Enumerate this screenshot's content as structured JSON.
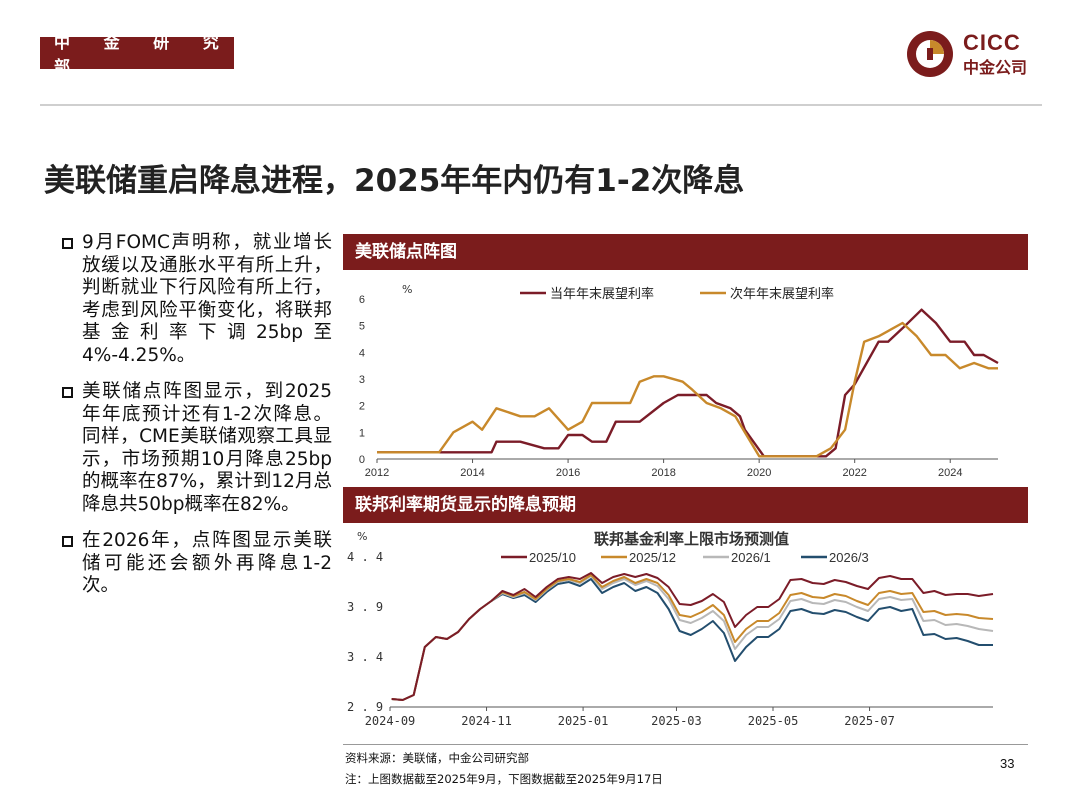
{
  "header": {
    "department": "中 金 研 究 部",
    "logo_en": "CICC",
    "logo_cn": "中金公司"
  },
  "title": "美联储重启降息进程，2025年年内仍有1-2次降息",
  "bullets": [
    "9月FOMC声明称，就业增长放缓以及通胀水平有所上升，判断就业下行风险有所上行，考虑到风险平衡变化，将联邦基金利率下调25bp至4%-4.25%。",
    "美联储点阵图显示，到2025年年底预计还有1-2次降息。同样，CME美联储观察工具显示，市场预期10月降息25bp的概率在87%，累计到12月总降息共50bp概率在82%。",
    "在2026年，点阵图显示美联储可能还会额外再降息1-2次。"
  ],
  "panel1": {
    "heading": "美联储点阵图",
    "colors": {
      "current": "#7b1c28",
      "next": "#c8892b"
    }
  },
  "panel2": {
    "heading": "联邦利率期货显示的降息预期",
    "colors": {
      "2025/10": "#7b1c28",
      "2025/12": "#c8892b",
      "2026/1": "#b8b8b8",
      "2026/3": "#234e6e"
    }
  },
  "source_note": "资料来源：美联储，中金公司研究部",
  "note": "注：上图数据截至2025年9月，下图数据截至2025年9月17日",
  "page_number": "33",
  "chart_data": [
    {
      "type": "line",
      "title": "",
      "ylabel": "%",
      "ylim": [
        0,
        6
      ],
      "yticks": [
        "0",
        "1",
        "2",
        "3",
        "4",
        "5",
        "6"
      ],
      "xlim": [
        2012,
        2025
      ],
      "xticks": [
        "2012",
        "2014",
        "2016",
        "2018",
        "2020",
        "2022",
        "2024"
      ],
      "legend": "top",
      "series": [
        {
          "name": "当年年末展望利率",
          "x": [
            2012,
            2013.3,
            2013.5,
            2014.4,
            2014.5,
            2015.0,
            2015.5,
            2015.8,
            2016.0,
            2016.3,
            2016.5,
            2016.8,
            2017.0,
            2017.5,
            2018.0,
            2018.3,
            2018.7,
            2018.9,
            2019.1,
            2019.4,
            2019.6,
            2019.7,
            2020.1,
            2020.3,
            2020.8,
            2021.0,
            2021.4,
            2021.6,
            2021.8,
            2022.0,
            2022.5,
            2022.7,
            2023.0,
            2023.4,
            2023.7,
            2024.0,
            2024.3,
            2024.5,
            2024.7,
            2025.0
          ],
          "y": [
            0.25,
            0.25,
            0.25,
            0.25,
            0.65,
            0.65,
            0.4,
            0.4,
            0.9,
            0.9,
            0.65,
            0.65,
            1.4,
            1.4,
            2.1,
            2.4,
            2.4,
            2.4,
            2.1,
            1.9,
            1.6,
            1.1,
            0.1,
            0.1,
            0.1,
            0.1,
            0.1,
            0.4,
            2.4,
            2.8,
            4.4,
            4.4,
            4.9,
            5.6,
            5.1,
            4.4,
            4.4,
            3.9,
            3.9,
            3.6
          ]
        },
        {
          "name": "次年年末展望利率",
          "x": [
            2012,
            2012.8,
            2013.3,
            2013.6,
            2014.0,
            2014.2,
            2014.5,
            2015.0,
            2015.3,
            2015.6,
            2016.0,
            2016.3,
            2016.5,
            2016.8,
            2017.0,
            2017.3,
            2017.5,
            2017.8,
            2018.0,
            2018.4,
            2018.6,
            2018.9,
            2019.2,
            2019.5,
            2019.7,
            2020.0,
            2020.5,
            2021.0,
            2021.2,
            2021.5,
            2021.8,
            2022.0,
            2022.2,
            2022.5,
            2023.0,
            2023.3,
            2023.6,
            2023.9,
            2024.2,
            2024.5,
            2024.8,
            2025.0
          ],
          "y": [
            0.25,
            0.25,
            0.25,
            1.0,
            1.4,
            1.1,
            1.9,
            1.6,
            1.6,
            1.9,
            1.1,
            1.4,
            2.1,
            2.1,
            2.1,
            2.1,
            2.9,
            3.1,
            3.1,
            2.9,
            2.6,
            2.1,
            1.9,
            1.6,
            1.0,
            0.1,
            0.1,
            0.1,
            0.1,
            0.4,
            1.1,
            2.9,
            4.4,
            4.6,
            5.1,
            4.6,
            3.9,
            3.9,
            3.4,
            3.6,
            3.4,
            3.4
          ]
        }
      ]
    },
    {
      "type": "line",
      "title": "联邦基金利率上限市场预测值",
      "ylabel": "%",
      "ylim": [
        2.9,
        4.4
      ],
      "yticks": [
        "2.9",
        "3.4",
        "3.9",
        "4.4"
      ],
      "xlim": [
        "2024-09-01",
        "2025-09-17"
      ],
      "xticks": [
        "2024-09",
        "2024-11",
        "2025-01",
        "2025-03",
        "2025-05",
        "2025-07"
      ],
      "legend": "top",
      "series": [
        {
          "name": "2025/10",
          "x": [
            "2024-09-02",
            "2024-09-09",
            "2024-09-16",
            "2024-09-23",
            "2024-09-30",
            "2024-10-07",
            "2024-10-14",
            "2024-10-21",
            "2024-10-28",
            "2024-11-04",
            "2024-11-11",
            "2024-11-18",
            "2024-11-25",
            "2024-12-02",
            "2024-12-09",
            "2024-12-16",
            "2024-12-23",
            "2024-12-30",
            "2025-01-06",
            "2025-01-13",
            "2025-01-20",
            "2025-01-27",
            "2025-02-03",
            "2025-02-10",
            "2025-02-17",
            "2025-02-24",
            "2025-03-03",
            "2025-03-10",
            "2025-03-17",
            "2025-03-24",
            "2025-03-31",
            "2025-04-07",
            "2025-04-14",
            "2025-04-21",
            "2025-04-28",
            "2025-05-05",
            "2025-05-12",
            "2025-05-19",
            "2025-05-26",
            "2025-06-02",
            "2025-06-09",
            "2025-06-16",
            "2025-06-23",
            "2025-06-30",
            "2025-07-07",
            "2025-07-14",
            "2025-07-21",
            "2025-07-28",
            "2025-08-04",
            "2025-08-11",
            "2025-08-18",
            "2025-08-25",
            "2025-09-01",
            "2025-09-08",
            "2025-09-17"
          ],
          "y": [
            2.98,
            2.97,
            3.02,
            3.5,
            3.6,
            3.58,
            3.65,
            3.78,
            3.88,
            3.96,
            4.06,
            4.02,
            4.08,
            4.0,
            4.1,
            4.18,
            4.2,
            4.18,
            4.24,
            4.14,
            4.2,
            4.23,
            4.2,
            4.23,
            4.19,
            4.1,
            3.93,
            3.92,
            3.96,
            4.03,
            3.95,
            3.7,
            3.82,
            3.9,
            3.9,
            3.98,
            4.17,
            4.18,
            4.14,
            4.13,
            4.17,
            4.15,
            4.11,
            4.08,
            4.19,
            4.21,
            4.18,
            4.18,
            4.04,
            4.06,
            4.02,
            4.03,
            4.03,
            4.01,
            4.03
          ]
        },
        {
          "name": "2025/12",
          "x": [
            "2024-09-02",
            "2024-09-09",
            "2024-09-16",
            "2024-09-23",
            "2024-09-30",
            "2024-10-07",
            "2024-10-14",
            "2024-10-21",
            "2024-10-28",
            "2024-11-04",
            "2024-11-11",
            "2024-11-18",
            "2024-11-25",
            "2024-12-02",
            "2024-12-09",
            "2024-12-16",
            "2024-12-23",
            "2024-12-30",
            "2025-01-06",
            "2025-01-13",
            "2025-01-20",
            "2025-01-27",
            "2025-02-03",
            "2025-02-10",
            "2025-02-17",
            "2025-02-24",
            "2025-03-03",
            "2025-03-10",
            "2025-03-17",
            "2025-03-24",
            "2025-03-31",
            "2025-04-07",
            "2025-04-14",
            "2025-04-21",
            "2025-04-28",
            "2025-05-05",
            "2025-05-12",
            "2025-05-19",
            "2025-05-26",
            "2025-06-02",
            "2025-06-09",
            "2025-06-16",
            "2025-06-23",
            "2025-06-30",
            "2025-07-07",
            "2025-07-14",
            "2025-07-21",
            "2025-07-28",
            "2025-08-04",
            "2025-08-11",
            "2025-08-18",
            "2025-08-25",
            "2025-09-01",
            "2025-09-08",
            "2025-09-17"
          ],
          "y": [
            2.98,
            2.97,
            3.02,
            3.5,
            3.6,
            3.58,
            3.65,
            3.78,
            3.88,
            3.96,
            4.05,
            4.01,
            4.05,
            3.98,
            4.08,
            4.16,
            4.18,
            4.15,
            4.22,
            4.1,
            4.16,
            4.2,
            4.14,
            4.18,
            4.14,
            4.02,
            3.82,
            3.8,
            3.85,
            3.92,
            3.82,
            3.55,
            3.68,
            3.76,
            3.76,
            3.84,
            4.02,
            4.04,
            4.0,
            3.99,
            4.03,
            4.01,
            3.96,
            3.92,
            4.04,
            4.06,
            4.03,
            4.04,
            3.85,
            3.86,
            3.82,
            3.83,
            3.82,
            3.79,
            3.78
          ]
        },
        {
          "name": "2026/1",
          "x": [
            "2024-09-02",
            "2024-09-09",
            "2024-09-16",
            "2024-09-23",
            "2024-09-30",
            "2024-10-07",
            "2024-10-14",
            "2024-10-21",
            "2024-10-28",
            "2024-11-04",
            "2024-11-11",
            "2024-11-18",
            "2024-11-25",
            "2024-12-02",
            "2024-12-09",
            "2024-12-16",
            "2024-12-23",
            "2024-12-30",
            "2025-01-06",
            "2025-01-13",
            "2025-01-20",
            "2025-01-27",
            "2025-02-03",
            "2025-02-10",
            "2025-02-17",
            "2025-02-24",
            "2025-03-03",
            "2025-03-10",
            "2025-03-17",
            "2025-03-24",
            "2025-03-31",
            "2025-04-07",
            "2025-04-14",
            "2025-04-21",
            "2025-04-28",
            "2025-05-05",
            "2025-05-12",
            "2025-05-19",
            "2025-05-26",
            "2025-06-02",
            "2025-06-09",
            "2025-06-16",
            "2025-06-23",
            "2025-06-30",
            "2025-07-07",
            "2025-07-14",
            "2025-07-21",
            "2025-07-28",
            "2025-08-04",
            "2025-08-11",
            "2025-08-18",
            "2025-08-25",
            "2025-09-01",
            "2025-09-08",
            "2025-09-17"
          ],
          "y": [
            2.98,
            2.97,
            3.02,
            3.5,
            3.6,
            3.58,
            3.65,
            3.78,
            3.88,
            3.96,
            4.04,
            4.0,
            4.04,
            3.97,
            4.07,
            4.15,
            4.17,
            4.14,
            4.21,
            4.08,
            4.14,
            4.18,
            4.12,
            4.16,
            4.11,
            3.98,
            3.77,
            3.74,
            3.79,
            3.86,
            3.76,
            3.48,
            3.62,
            3.7,
            3.7,
            3.78,
            3.96,
            3.98,
            3.94,
            3.93,
            3.97,
            3.95,
            3.9,
            3.86,
            3.98,
            4.0,
            3.97,
            3.98,
            3.76,
            3.77,
            3.72,
            3.73,
            3.71,
            3.68,
            3.66
          ]
        },
        {
          "name": "2026/3",
          "x": [
            "2024-09-02",
            "2024-09-09",
            "2024-09-16",
            "2024-09-23",
            "2024-09-30",
            "2024-10-07",
            "2024-10-14",
            "2024-10-21",
            "2024-10-28",
            "2024-11-04",
            "2024-11-11",
            "2024-11-18",
            "2024-11-25",
            "2024-12-02",
            "2024-12-09",
            "2024-12-16",
            "2024-12-23",
            "2024-12-30",
            "2025-01-06",
            "2025-01-13",
            "2025-01-20",
            "2025-01-27",
            "2025-02-03",
            "2025-02-10",
            "2025-02-17",
            "2025-02-24",
            "2025-03-03",
            "2025-03-10",
            "2025-03-17",
            "2025-03-24",
            "2025-03-31",
            "2025-04-07",
            "2025-04-14",
            "2025-04-21",
            "2025-04-28",
            "2025-05-05",
            "2025-05-12",
            "2025-05-19",
            "2025-05-26",
            "2025-06-02",
            "2025-06-09",
            "2025-06-16",
            "2025-06-23",
            "2025-06-30",
            "2025-07-07",
            "2025-07-14",
            "2025-07-21",
            "2025-07-28",
            "2025-08-04",
            "2025-08-11",
            "2025-08-18",
            "2025-08-25",
            "2025-09-01",
            "2025-09-08",
            "2025-09-17"
          ],
          "y": [
            2.98,
            2.97,
            3.02,
            3.5,
            3.6,
            3.58,
            3.65,
            3.78,
            3.88,
            3.96,
            4.03,
            3.99,
            4.02,
            3.95,
            4.05,
            4.13,
            4.15,
            4.11,
            4.18,
            4.04,
            4.1,
            4.14,
            4.06,
            4.1,
            4.04,
            3.88,
            3.66,
            3.62,
            3.68,
            3.76,
            3.64,
            3.36,
            3.5,
            3.6,
            3.6,
            3.68,
            3.86,
            3.88,
            3.84,
            3.83,
            3.87,
            3.85,
            3.8,
            3.76,
            3.88,
            3.9,
            3.86,
            3.88,
            3.62,
            3.63,
            3.58,
            3.59,
            3.56,
            3.52,
            3.52
          ]
        }
      ]
    }
  ]
}
